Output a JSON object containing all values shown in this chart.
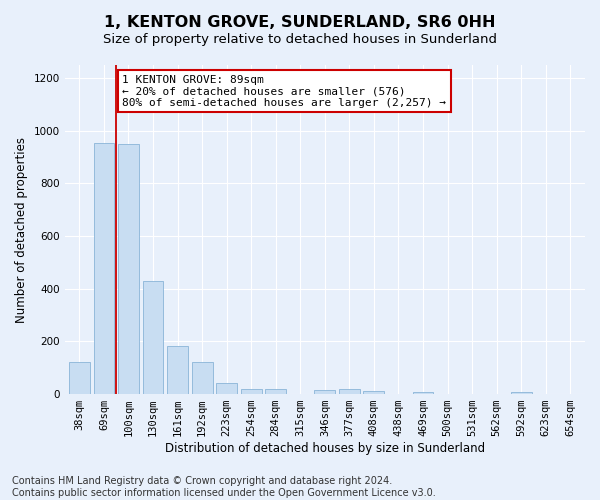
{
  "title": "1, KENTON GROVE, SUNDERLAND, SR6 0HH",
  "subtitle": "Size of property relative to detached houses in Sunderland",
  "xlabel": "Distribution of detached houses by size in Sunderland",
  "ylabel": "Number of detached properties",
  "categories": [
    "38sqm",
    "69sqm",
    "100sqm",
    "130sqm",
    "161sqm",
    "192sqm",
    "223sqm",
    "254sqm",
    "284sqm",
    "315sqm",
    "346sqm",
    "377sqm",
    "408sqm",
    "438sqm",
    "469sqm",
    "500sqm",
    "531sqm",
    "562sqm",
    "592sqm",
    "623sqm",
    "654sqm"
  ],
  "values": [
    120,
    955,
    950,
    428,
    183,
    120,
    42,
    20,
    20,
    0,
    15,
    18,
    10,
    0,
    8,
    0,
    0,
    0,
    8,
    0,
    0
  ],
  "bar_color": "#c8ddf2",
  "bar_edge_color": "#8ab4d8",
  "property_line_x": 1.5,
  "property_line_color": "#cc0000",
  "annotation_text": "1 KENTON GROVE: 89sqm\n← 20% of detached houses are smaller (576)\n80% of semi-detached houses are larger (2,257) →",
  "annotation_box_color": "#ffffff",
  "annotation_box_edge_color": "#cc0000",
  "ylim": [
    0,
    1250
  ],
  "yticks": [
    0,
    200,
    400,
    600,
    800,
    1000,
    1200
  ],
  "footer_text": "Contains HM Land Registry data © Crown copyright and database right 2024.\nContains public sector information licensed under the Open Government Licence v3.0.",
  "background_color": "#e8f0fb",
  "plot_background": "#e8f0fb",
  "title_fontsize": 11.5,
  "subtitle_fontsize": 9.5,
  "axis_label_fontsize": 8.5,
  "tick_fontsize": 7.5,
  "footer_fontsize": 7.0
}
